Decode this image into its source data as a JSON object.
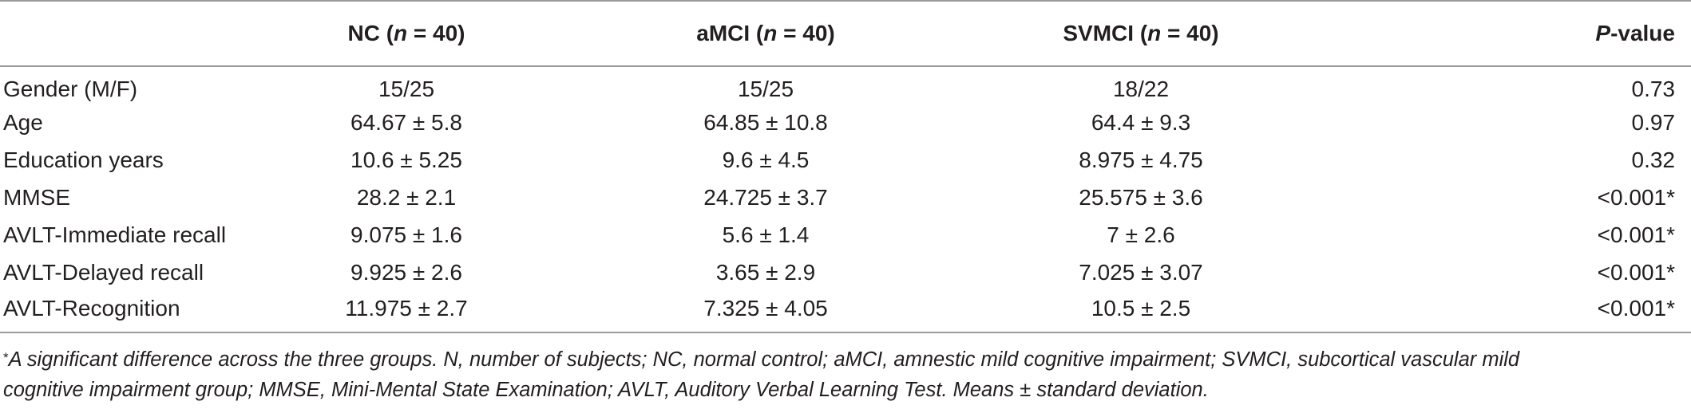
{
  "table": {
    "headers": {
      "label": "",
      "nc": {
        "name": "NC (",
        "n": "n",
        "rest": " = 40)"
      },
      "amci": {
        "name": "aMCI (",
        "n": "n",
        "rest": " = 40)"
      },
      "svmci": {
        "name": "SVMCI (",
        "n": "n",
        "rest": " = 40)"
      },
      "pvalue": {
        "p": "P",
        "rest": "-value"
      }
    },
    "rows": [
      {
        "label": "Gender (M/F)",
        "nc": "15/25",
        "amci": "15/25",
        "svmci": "18/22",
        "p": "0.73"
      },
      {
        "label": "Age",
        "nc": "64.67 ± 5.8",
        "amci": "64.85 ± 10.8",
        "svmci": "64.4 ± 9.3",
        "p": "0.97"
      },
      {
        "label": "Education years",
        "nc": "10.6 ± 5.25",
        "amci": "9.6 ± 4.5",
        "svmci": "8.975 ± 4.75",
        "p": "0.32"
      },
      {
        "label": "MMSE",
        "nc": "28.2 ± 2.1",
        "amci": "24.725 ± 3.7",
        "svmci": "25.575 ± 3.6",
        "p": "<0.001*"
      },
      {
        "label": "AVLT-Immediate recall",
        "nc": "9.075 ± 1.6",
        "amci": "5.6 ± 1.4",
        "svmci": "7 ± 2.6",
        "p": "<0.001*"
      },
      {
        "label": "AVLT-Delayed recall",
        "nc": "9.925 ± 2.6",
        "amci": "3.65 ± 2.9",
        "svmci": "7.025 ± 3.07",
        "p": "<0.001*"
      },
      {
        "label": "AVLT-Recognition",
        "nc": "11.975 ± 2.7",
        "amci": "7.325 ± 4.05",
        "svmci": "10.5 ± 2.5",
        "p": "<0.001*"
      }
    ]
  },
  "footnote": {
    "marker": "*",
    "line1": "A significant difference across the three groups. N, number of subjects; NC, normal control; aMCI, amnestic mild cognitive impairment; SVMCI, subcortical vascular mild",
    "line2": "cognitive impairment group; MMSE, Mini-Mental State Examination; AVLT, Auditory Verbal Learning Test. Means ± standard deviation."
  }
}
